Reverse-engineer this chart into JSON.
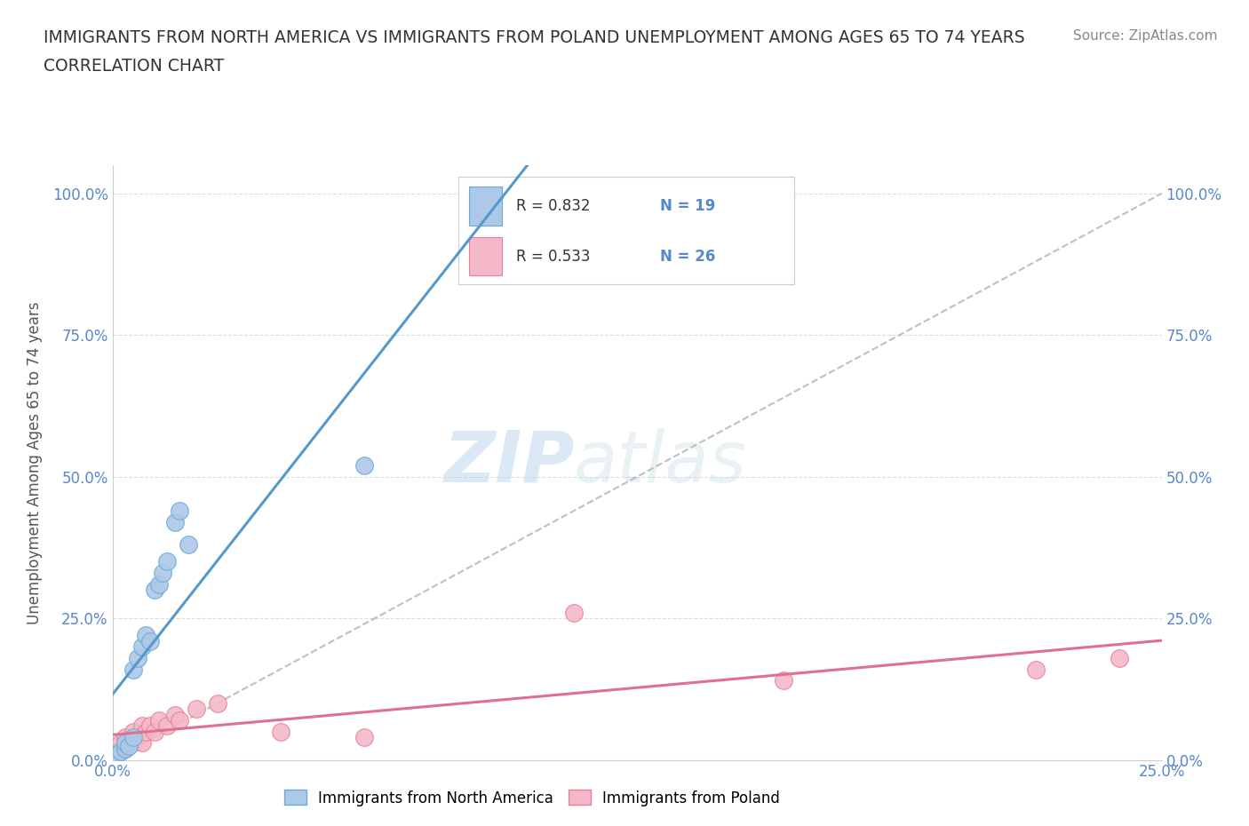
{
  "title_line1": "IMMIGRANTS FROM NORTH AMERICA VS IMMIGRANTS FROM POLAND UNEMPLOYMENT AMONG AGES 65 TO 74 YEARS",
  "title_line2": "CORRELATION CHART",
  "source_text": "Source: ZipAtlas.com",
  "ylabel": "Unemployment Among Ages 65 to 74 years",
  "xlim": [
    0.0,
    0.25
  ],
  "ylim": [
    0.0,
    1.05
  ],
  "north_america_x": [
    0.001,
    0.002,
    0.003,
    0.003,
    0.004,
    0.005,
    0.005,
    0.006,
    0.007,
    0.008,
    0.009,
    0.01,
    0.011,
    0.012,
    0.013,
    0.015,
    0.016,
    0.018,
    0.06
  ],
  "north_america_y": [
    0.01,
    0.015,
    0.02,
    0.03,
    0.025,
    0.04,
    0.16,
    0.18,
    0.2,
    0.22,
    0.21,
    0.3,
    0.31,
    0.33,
    0.35,
    0.42,
    0.44,
    0.38,
    0.52
  ],
  "poland_x": [
    0.001,
    0.002,
    0.002,
    0.003,
    0.003,
    0.004,
    0.005,
    0.005,
    0.006,
    0.007,
    0.007,
    0.008,
    0.009,
    0.01,
    0.011,
    0.013,
    0.015,
    0.016,
    0.02,
    0.025,
    0.04,
    0.06,
    0.11,
    0.16,
    0.22,
    0.24
  ],
  "poland_y": [
    0.01,
    0.02,
    0.03,
    0.02,
    0.04,
    0.03,
    0.03,
    0.05,
    0.04,
    0.03,
    0.06,
    0.05,
    0.06,
    0.05,
    0.07,
    0.06,
    0.08,
    0.07,
    0.09,
    0.1,
    0.05,
    0.04,
    0.26,
    0.14,
    0.16,
    0.18
  ],
  "north_america_color": "#adc8e8",
  "north_america_edge_color": "#6aaad4",
  "north_america_line_color": "#5599cc",
  "poland_color": "#f5b8c8",
  "poland_edge_color": "#e8809a",
  "poland_line_color": "#e07090",
  "trend_line_color": "#b0b0b0",
  "R_north_america": 0.832,
  "N_north_america": 19,
  "R_poland": 0.533,
  "N_poland": 26,
  "watermark_ZIP": "ZIP",
  "watermark_atlas": "atlas",
  "background_color": "#ffffff",
  "grid_color": "#dddddd",
  "tick_color": "#5588cc",
  "title_color": "#333333",
  "source_color": "#888888",
  "ylabel_color": "#555555"
}
